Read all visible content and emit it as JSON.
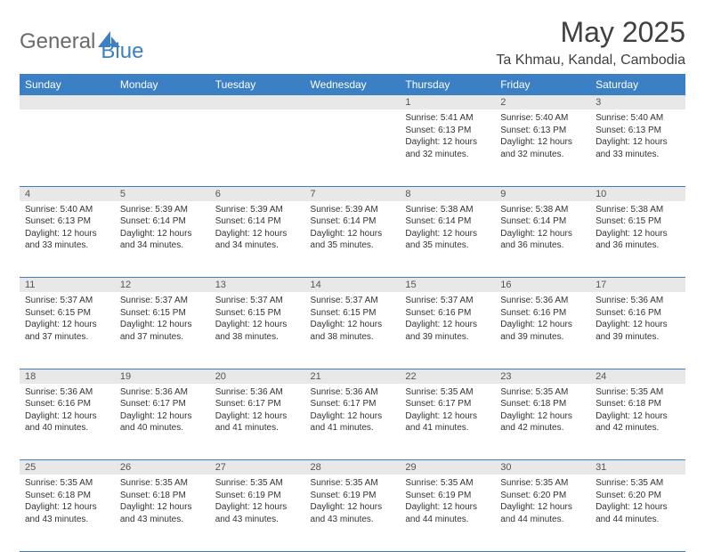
{
  "brand": {
    "text1": "General",
    "text2": "Blue",
    "logo_color": "#3b7fc4"
  },
  "title": "May 2025",
  "location": "Ta Khmau, Kandal, Cambodia",
  "colors": {
    "header_bg": "#3b7fc4",
    "header_text": "#ffffff",
    "daynum_bg": "#e8e8e8",
    "daynum_text": "#555555",
    "body_text": "#333333",
    "rule": "#3b7fc4",
    "title_text": "#404040"
  },
  "dayHeaders": [
    "Sunday",
    "Monday",
    "Tuesday",
    "Wednesday",
    "Thursday",
    "Friday",
    "Saturday"
  ],
  "weeks": [
    [
      null,
      null,
      null,
      null,
      {
        "n": "1",
        "sunrise": "5:41 AM",
        "sunset": "6:13 PM",
        "daylight": "12 hours and 32 minutes."
      },
      {
        "n": "2",
        "sunrise": "5:40 AM",
        "sunset": "6:13 PM",
        "daylight": "12 hours and 32 minutes."
      },
      {
        "n": "3",
        "sunrise": "5:40 AM",
        "sunset": "6:13 PM",
        "daylight": "12 hours and 33 minutes."
      }
    ],
    [
      {
        "n": "4",
        "sunrise": "5:40 AM",
        "sunset": "6:13 PM",
        "daylight": "12 hours and 33 minutes."
      },
      {
        "n": "5",
        "sunrise": "5:39 AM",
        "sunset": "6:14 PM",
        "daylight": "12 hours and 34 minutes."
      },
      {
        "n": "6",
        "sunrise": "5:39 AM",
        "sunset": "6:14 PM",
        "daylight": "12 hours and 34 minutes."
      },
      {
        "n": "7",
        "sunrise": "5:39 AM",
        "sunset": "6:14 PM",
        "daylight": "12 hours and 35 minutes."
      },
      {
        "n": "8",
        "sunrise": "5:38 AM",
        "sunset": "6:14 PM",
        "daylight": "12 hours and 35 minutes."
      },
      {
        "n": "9",
        "sunrise": "5:38 AM",
        "sunset": "6:14 PM",
        "daylight": "12 hours and 36 minutes."
      },
      {
        "n": "10",
        "sunrise": "5:38 AM",
        "sunset": "6:15 PM",
        "daylight": "12 hours and 36 minutes."
      }
    ],
    [
      {
        "n": "11",
        "sunrise": "5:37 AM",
        "sunset": "6:15 PM",
        "daylight": "12 hours and 37 minutes."
      },
      {
        "n": "12",
        "sunrise": "5:37 AM",
        "sunset": "6:15 PM",
        "daylight": "12 hours and 37 minutes."
      },
      {
        "n": "13",
        "sunrise": "5:37 AM",
        "sunset": "6:15 PM",
        "daylight": "12 hours and 38 minutes."
      },
      {
        "n": "14",
        "sunrise": "5:37 AM",
        "sunset": "6:15 PM",
        "daylight": "12 hours and 38 minutes."
      },
      {
        "n": "15",
        "sunrise": "5:37 AM",
        "sunset": "6:16 PM",
        "daylight": "12 hours and 39 minutes."
      },
      {
        "n": "16",
        "sunrise": "5:36 AM",
        "sunset": "6:16 PM",
        "daylight": "12 hours and 39 minutes."
      },
      {
        "n": "17",
        "sunrise": "5:36 AM",
        "sunset": "6:16 PM",
        "daylight": "12 hours and 39 minutes."
      }
    ],
    [
      {
        "n": "18",
        "sunrise": "5:36 AM",
        "sunset": "6:16 PM",
        "daylight": "12 hours and 40 minutes."
      },
      {
        "n": "19",
        "sunrise": "5:36 AM",
        "sunset": "6:17 PM",
        "daylight": "12 hours and 40 minutes."
      },
      {
        "n": "20",
        "sunrise": "5:36 AM",
        "sunset": "6:17 PM",
        "daylight": "12 hours and 41 minutes."
      },
      {
        "n": "21",
        "sunrise": "5:36 AM",
        "sunset": "6:17 PM",
        "daylight": "12 hours and 41 minutes."
      },
      {
        "n": "22",
        "sunrise": "5:35 AM",
        "sunset": "6:17 PM",
        "daylight": "12 hours and 41 minutes."
      },
      {
        "n": "23",
        "sunrise": "5:35 AM",
        "sunset": "6:18 PM",
        "daylight": "12 hours and 42 minutes."
      },
      {
        "n": "24",
        "sunrise": "5:35 AM",
        "sunset": "6:18 PM",
        "daylight": "12 hours and 42 minutes."
      }
    ],
    [
      {
        "n": "25",
        "sunrise": "5:35 AM",
        "sunset": "6:18 PM",
        "daylight": "12 hours and 43 minutes."
      },
      {
        "n": "26",
        "sunrise": "5:35 AM",
        "sunset": "6:18 PM",
        "daylight": "12 hours and 43 minutes."
      },
      {
        "n": "27",
        "sunrise": "5:35 AM",
        "sunset": "6:19 PM",
        "daylight": "12 hours and 43 minutes."
      },
      {
        "n": "28",
        "sunrise": "5:35 AM",
        "sunset": "6:19 PM",
        "daylight": "12 hours and 43 minutes."
      },
      {
        "n": "29",
        "sunrise": "5:35 AM",
        "sunset": "6:19 PM",
        "daylight": "12 hours and 44 minutes."
      },
      {
        "n": "30",
        "sunrise": "5:35 AM",
        "sunset": "6:20 PM",
        "daylight": "12 hours and 44 minutes."
      },
      {
        "n": "31",
        "sunrise": "5:35 AM",
        "sunset": "6:20 PM",
        "daylight": "12 hours and 44 minutes."
      }
    ]
  ],
  "labels": {
    "sunrise": "Sunrise: ",
    "sunset": "Sunset: ",
    "daylight": "Daylight: "
  }
}
